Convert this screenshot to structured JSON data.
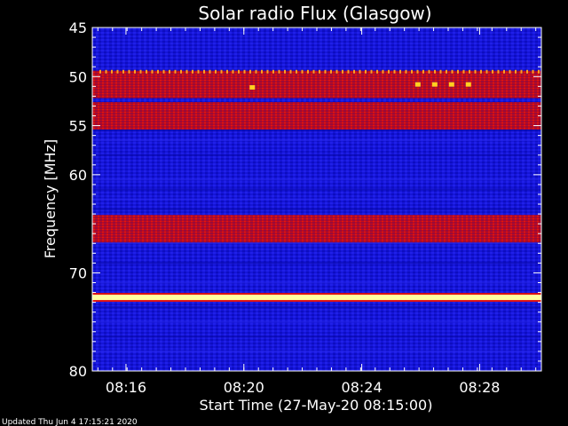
{
  "chart_data": {
    "type": "heatmap",
    "title": "Solar radio Flux (Glasgow)",
    "xlabel": "Start Time (27-May-20 08:15:00)",
    "ylabel": "Frequency [MHz]",
    "x_range_minutes": [
      8.9,
      16.9
    ],
    "x_ticks": [
      {
        "label": "08:16",
        "value": 9.5
      },
      {
        "label": "08:20",
        "value": 11.6
      },
      {
        "label": "08:24",
        "value": 13.7
      },
      {
        "label": "08:28",
        "value": 15.8
      }
    ],
    "x_ticks_note": "time axis shown as minutes offset only for internal plotting",
    "ylim": [
      45,
      80
    ],
    "y_inverted": true,
    "y_ticks": [
      45,
      50,
      55,
      60,
      70,
      80
    ],
    "colors": {
      "background": "#000000",
      "low_signal": "#1010d0",
      "mid_signal": "#8a0a8a",
      "high_signal": "#d01010",
      "peak_signal": "#ffff80",
      "axis": "#ffffff"
    },
    "bands": [
      {
        "freq_mhz": 49.5,
        "level": "dots"
      },
      {
        "freq_mhz": 50.8,
        "level": "high"
      },
      {
        "freq_mhz": 54.0,
        "level": "high"
      },
      {
        "freq_mhz": 65.5,
        "level": "high"
      },
      {
        "freq_mhz": 72.5,
        "level": "peak"
      }
    ]
  },
  "footer": {
    "updated": "Updated Thu Jun  4 17:15:21 2020"
  }
}
